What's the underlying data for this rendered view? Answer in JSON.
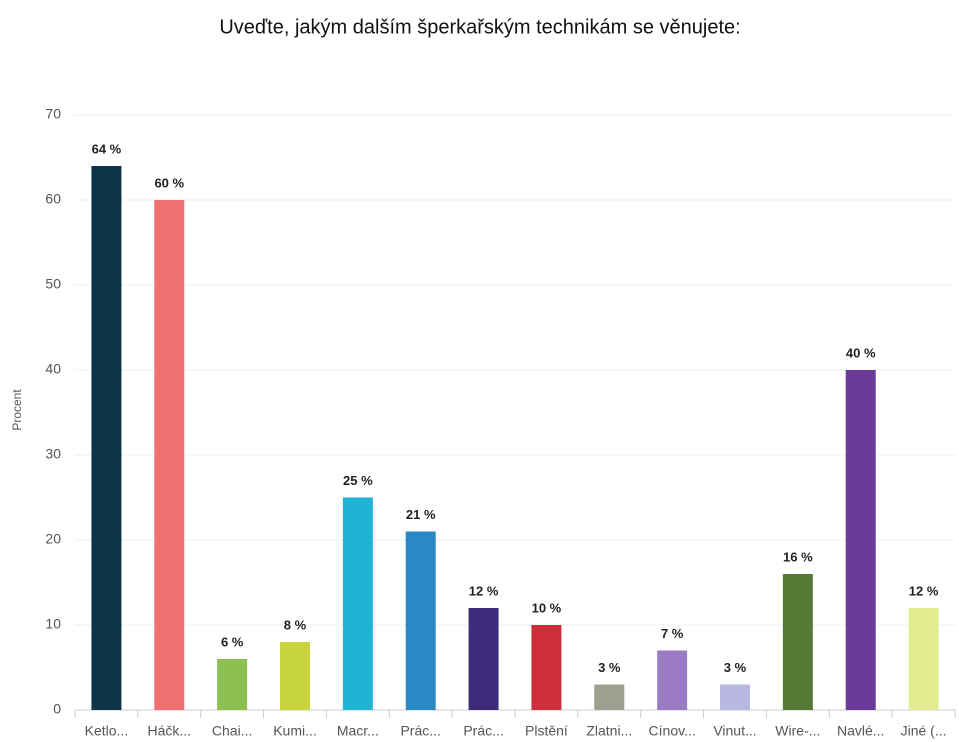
{
  "chart_data": {
    "type": "bar",
    "title": "Uveďte, jakým dalším šperkařským technikám se věnujete:",
    "y_label": "Procent",
    "categories": [
      "Ketlo...",
      "Háčk...",
      "Chai...",
      "Kumi...",
      "Macr...",
      "Prác...",
      "Prác...",
      "Plstění",
      "Zlatni...",
      "Cínov...",
      "Vinut...",
      "Wire-...",
      "Navlé...",
      "Jiné (..."
    ],
    "values": [
      64,
      60,
      6,
      8,
      25,
      21,
      12,
      10,
      3,
      7,
      3,
      16,
      40,
      12
    ],
    "value_labels": [
      "64 %",
      "60 %",
      "6 %",
      "8 %",
      "25 %",
      "21 %",
      "12 %",
      "10 %",
      "3 %",
      "7 %",
      "3 %",
      "16 %",
      "40 %",
      "12 %"
    ],
    "colors": [
      "#0d3349",
      "#f07070",
      "#8cc152",
      "#c8d43c",
      "#1fb3d4",
      "#2a88c4",
      "#3e2b7a",
      "#cc2f3a",
      "#9ca08c",
      "#9b7bc4",
      "#b8b8e0",
      "#557a35",
      "#6a3b9a",
      "#e2eb90"
    ],
    "ylim": [
      0,
      70
    ],
    "yticks": [
      0,
      10,
      20,
      30,
      40,
      50,
      60,
      70
    ],
    "grid": true
  }
}
